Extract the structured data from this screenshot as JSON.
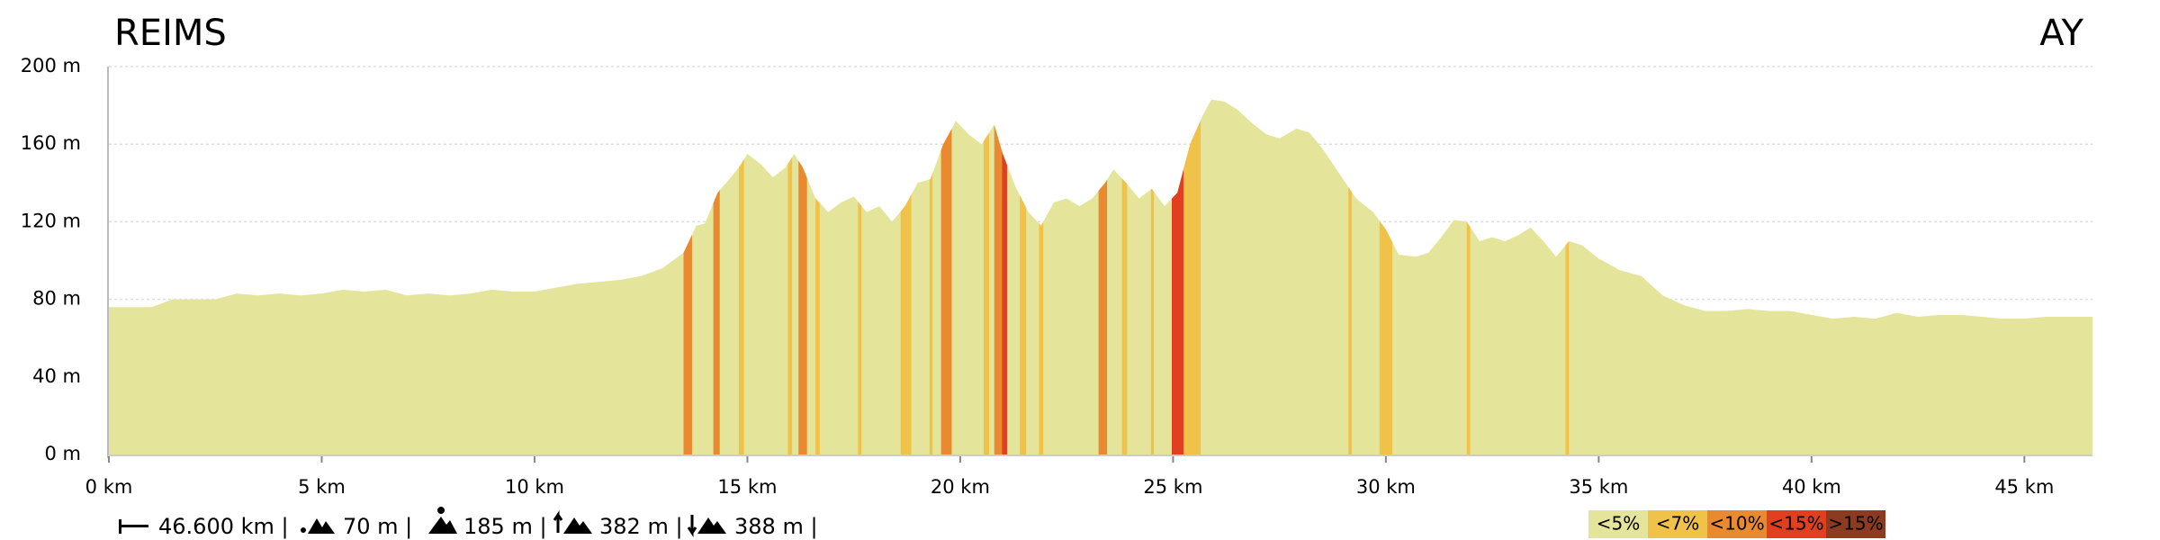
{
  "chart_data": {
    "type": "area",
    "start_label": "REIMS",
    "end_label": "AY",
    "x": [
      0,
      0.5,
      1,
      1.5,
      2,
      2.5,
      3,
      3.5,
      4,
      4.5,
      5,
      5.5,
      6,
      6.5,
      7,
      7.5,
      8,
      8.5,
      9,
      9.5,
      10,
      10.5,
      11,
      11.5,
      12,
      12.5,
      13,
      13.5,
      13.8,
      14,
      14.3,
      14.5,
      14.8,
      15,
      15.3,
      15.6,
      15.9,
      16.1,
      16.3,
      16.6,
      16.9,
      17.2,
      17.5,
      17.8,
      18.1,
      18.4,
      18.7,
      19,
      19.3,
      19.6,
      19.9,
      20.2,
      20.5,
      20.8,
      21,
      21.3,
      21.6,
      21.9,
      22.2,
      22.5,
      22.8,
      23.1,
      23.4,
      23.6,
      23.9,
      24.2,
      24.5,
      24.8,
      25.1,
      25.4,
      25.7,
      25.9,
      26.2,
      26.5,
      26.9,
      27.2,
      27.5,
      27.9,
      28.2,
      28.5,
      28.9,
      29.3,
      29.7,
      30,
      30.3,
      30.7,
      31,
      31.3,
      31.6,
      31.9,
      32.2,
      32.5,
      32.8,
      33.1,
      33.4,
      33.7,
      34,
      34.3,
      34.6,
      35,
      35.5,
      36,
      36.5,
      37,
      37.5,
      38,
      38.5,
      39,
      39.5,
      40,
      40.5,
      41,
      41.5,
      42,
      42.5,
      43,
      43.5,
      44,
      44.5,
      45,
      45.5,
      46,
      46.6
    ],
    "values": [
      76,
      76,
      76,
      80,
      80,
      80,
      83,
      82,
      83,
      82,
      83,
      85,
      84,
      85,
      82,
      83,
      82,
      83,
      85,
      84,
      84,
      86,
      88,
      89,
      90,
      92,
      96,
      104,
      118,
      119,
      135,
      140,
      148,
      155,
      150,
      143,
      148,
      155,
      148,
      132,
      125,
      130,
      133,
      125,
      128,
      120,
      128,
      140,
      142,
      160,
      172,
      165,
      160,
      170,
      155,
      138,
      125,
      118,
      130,
      132,
      128,
      132,
      140,
      147,
      140,
      132,
      137,
      128,
      135,
      160,
      175,
      183,
      182,
      178,
      170,
      165,
      163,
      168,
      166,
      158,
      145,
      132,
      125,
      116,
      103,
      102,
      104,
      112,
      121,
      120,
      110,
      112,
      110,
      113,
      117,
      110,
      102,
      110,
      108,
      101,
      95,
      92,
      82,
      77,
      74,
      74,
      75,
      74,
      74,
      72,
      70,
      71,
      70,
      73,
      71,
      72,
      72,
      71,
      70,
      70,
      71,
      71,
      71
    ],
    "gradient_segments": [
      {
        "start": 13.5,
        "end": 13.7,
        "class": 2
      },
      {
        "start": 14.2,
        "end": 14.35,
        "class": 2
      },
      {
        "start": 14.8,
        "end": 14.92,
        "class": 1
      },
      {
        "start": 15.95,
        "end": 16.05,
        "class": 1
      },
      {
        "start": 16.2,
        "end": 16.4,
        "class": 2
      },
      {
        "start": 16.6,
        "end": 16.7,
        "class": 1
      },
      {
        "start": 17.6,
        "end": 17.68,
        "class": 1
      },
      {
        "start": 18.6,
        "end": 18.85,
        "class": 1
      },
      {
        "start": 19.28,
        "end": 19.35,
        "class": 1
      },
      {
        "start": 19.55,
        "end": 19.8,
        "class": 2
      },
      {
        "start": 20.55,
        "end": 20.68,
        "class": 1
      },
      {
        "start": 20.8,
        "end": 20.98,
        "class": 2
      },
      {
        "start": 20.98,
        "end": 21.1,
        "class": 3
      },
      {
        "start": 21.4,
        "end": 21.55,
        "class": 1
      },
      {
        "start": 21.85,
        "end": 21.95,
        "class": 1
      },
      {
        "start": 23.25,
        "end": 23.45,
        "class": 2
      },
      {
        "start": 23.8,
        "end": 23.92,
        "class": 1
      },
      {
        "start": 24.48,
        "end": 24.55,
        "class": 1
      },
      {
        "start": 24.97,
        "end": 25.25,
        "class": 3
      },
      {
        "start": 25.25,
        "end": 25.65,
        "class": 1
      },
      {
        "start": 29.12,
        "end": 29.2,
        "class": 1
      },
      {
        "start": 29.85,
        "end": 30.15,
        "class": 1
      },
      {
        "start": 31.9,
        "end": 31.98,
        "class": 1
      },
      {
        "start": 34.22,
        "end": 34.3,
        "class": 1
      }
    ],
    "legend": [
      {
        "label": "<5%",
        "color": "#e4e59a"
      },
      {
        "label": "<7%",
        "color": "#f0c24a"
      },
      {
        "label": "<10%",
        "color": "#ea8a30"
      },
      {
        "label": "<15%",
        "color": "#e0401f"
      },
      {
        "label": ">15%",
        "color": "#8c3a20"
      }
    ],
    "xlim": [
      0,
      46.6
    ],
    "ylim": [
      0,
      200
    ],
    "xticks": [
      {
        "value": 0,
        "label": "0 km"
      },
      {
        "value": 5,
        "label": "5 km"
      },
      {
        "value": 10,
        "label": "10 km"
      },
      {
        "value": 15,
        "label": "15 km"
      },
      {
        "value": 20,
        "label": "20 km"
      },
      {
        "value": 25,
        "label": "25 km"
      },
      {
        "value": 30,
        "label": "30 km"
      },
      {
        "value": 35,
        "label": "35 km"
      },
      {
        "value": 40,
        "label": "40 km"
      },
      {
        "value": 45,
        "label": "45 km"
      }
    ],
    "yticks": [
      {
        "value": 0,
        "label": "0 m"
      },
      {
        "value": 40,
        "label": "40 m"
      },
      {
        "value": 80,
        "label": "80 m"
      },
      {
        "value": 120,
        "label": "120 m"
      },
      {
        "value": 160,
        "label": "160 m"
      },
      {
        "value": 200,
        "label": "200 m"
      }
    ],
    "grid": true,
    "stats": [
      "46.600 km |",
      "70 m |",
      "185 m |",
      "382 m |",
      "388 m |"
    ]
  }
}
